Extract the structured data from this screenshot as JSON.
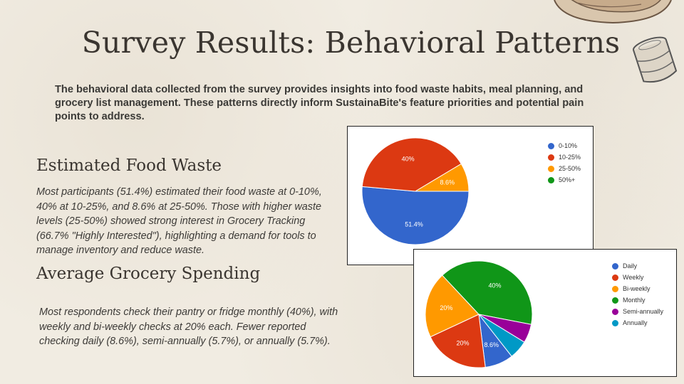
{
  "title": "Survey Results: Behavioral Patterns",
  "intro": "The behavioral data collected from the survey provides insights into food waste habits, meal planning, and grocery list management. These patterns directly inform SustainaBite's feature priorities and potential pain points to address.",
  "sections": [
    {
      "heading": "Estimated Food Waste",
      "body": "Most participants (51.4%) estimated their food waste at 0-10%, 40% at 10-25%, and 8.6% at 25-50%. Those with higher waste levels (25-50%) showed strong interest in Grocery Tracking (66.7% \"Highly Interested\"), highlighting a demand for tools to manage inventory and reduce waste."
    },
    {
      "heading": "Average Grocery Spending",
      "body": "Most respondents check their pantry or fridge monthly (40%), with weekly and bi-weekly checks at 20% each. Fewer reported checking daily (8.6%), semi-annually (5.7%), or annually (5.7%)."
    }
  ],
  "chart_data": [
    {
      "type": "pie",
      "title": "",
      "categories": [
        "0-10%",
        "10-25%",
        "25-50%",
        "50%+"
      ],
      "values": [
        51.4,
        40,
        8.6,
        0
      ],
      "labels": [
        "51.4%",
        "40%",
        "8.6%",
        ""
      ],
      "colors": [
        "#3366cc",
        "#dc3912",
        "#ff9900",
        "#109618"
      ],
      "legend": "right"
    },
    {
      "type": "pie",
      "title": "",
      "categories": [
        "Daily",
        "Weekly",
        "Bi-weekly",
        "Monthly",
        "Semi-annually",
        "Annually"
      ],
      "values": [
        8.6,
        20,
        20,
        40,
        5.7,
        5.7
      ],
      "labels": [
        "8.6%",
        "20%",
        "20%",
        "40%",
        "",
        ""
      ],
      "colors": [
        "#3366cc",
        "#dc3912",
        "#ff9900",
        "#109618",
        "#990099",
        "#0099c6"
      ],
      "legend": "right"
    }
  ]
}
